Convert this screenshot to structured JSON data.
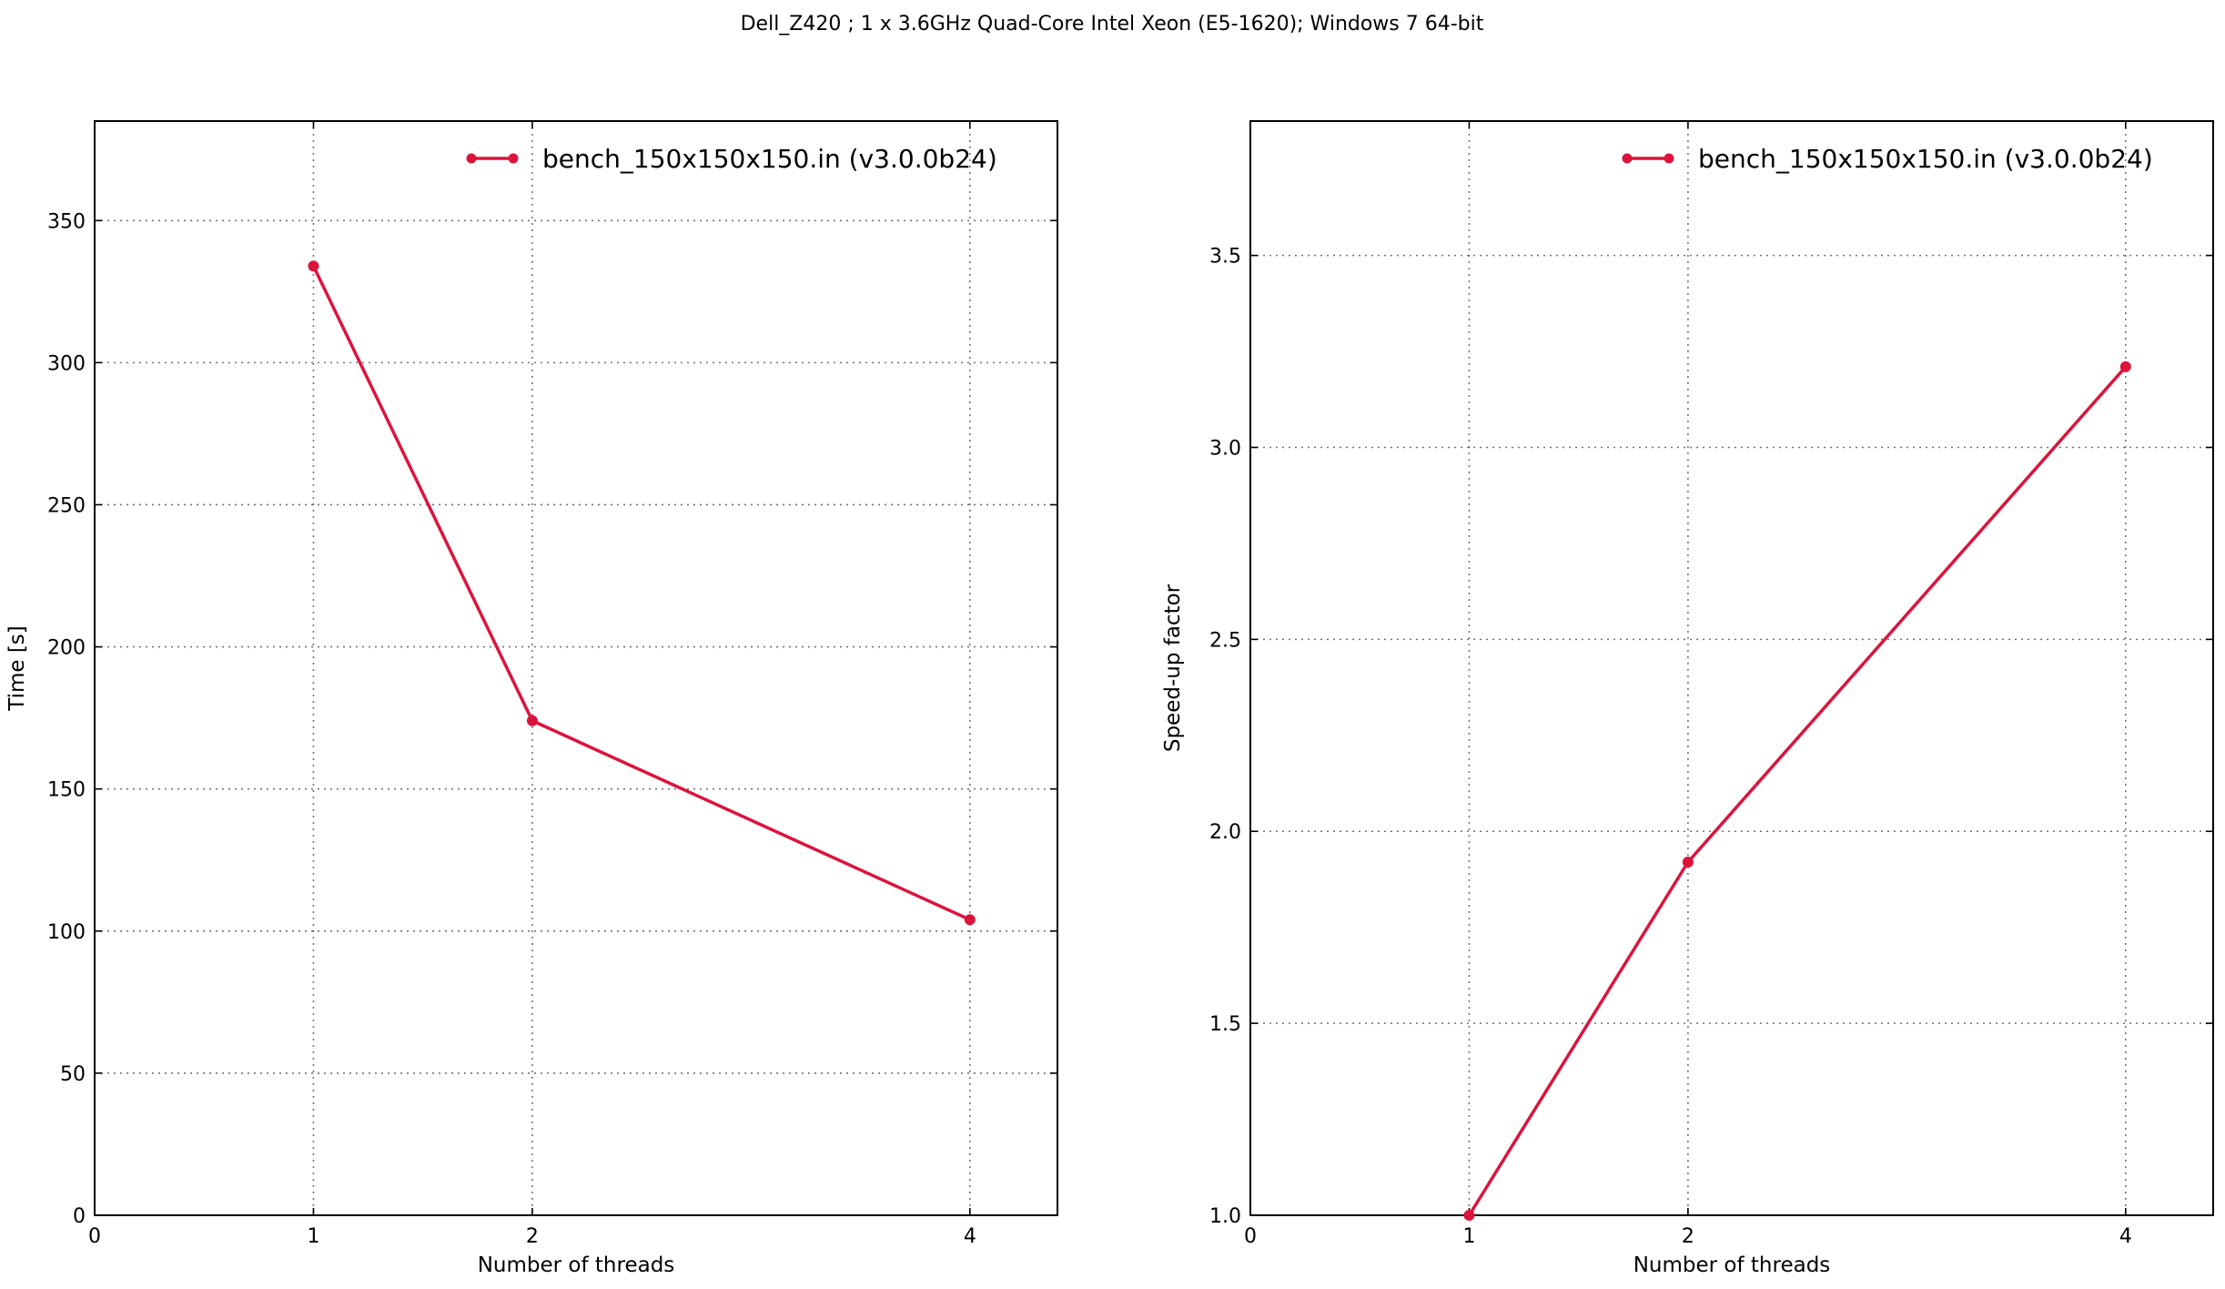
{
  "figure": {
    "suptitle": "Dell_Z420 ; 1 x 3.6GHz Quad-Core Intel Xeon (E5-1620); Windows 7 64-bit"
  },
  "colors": {
    "series": "#dc143c",
    "background": "#ffffff",
    "axis": "#000000"
  },
  "chart_data": [
    {
      "type": "line",
      "title": "",
      "xlabel": "Number of threads",
      "ylabel": "Time [s]",
      "xlim": [
        0,
        4.4
      ],
      "ylim": [
        0,
        385
      ],
      "xticks": [
        0,
        1,
        2,
        4
      ],
      "yticks": [
        0,
        50,
        100,
        150,
        200,
        250,
        300,
        350
      ],
      "grid": true,
      "legend_position": "top-right",
      "series": [
        {
          "name": "bench_150x150x150.in (v3.0.0b24)",
          "x": [
            1,
            2,
            4
          ],
          "y": [
            334,
            174,
            104
          ],
          "marker": "circle"
        }
      ]
    },
    {
      "type": "line",
      "title": "",
      "xlabel": "Number of threads",
      "ylabel": "Speed-up factor",
      "xlim": [
        0,
        4.4
      ],
      "ylim": [
        1.0,
        3.85
      ],
      "xticks": [
        0,
        1,
        2,
        4
      ],
      "yticks": [
        1.0,
        1.5,
        2.0,
        2.5,
        3.0,
        3.5
      ],
      "grid": true,
      "legend_position": "top-right",
      "series": [
        {
          "name": "bench_150x150x150.in (v3.0.0b24)",
          "x": [
            1,
            2,
            4
          ],
          "y": [
            1.0,
            1.92,
            3.21
          ],
          "marker": "circle"
        }
      ]
    }
  ]
}
